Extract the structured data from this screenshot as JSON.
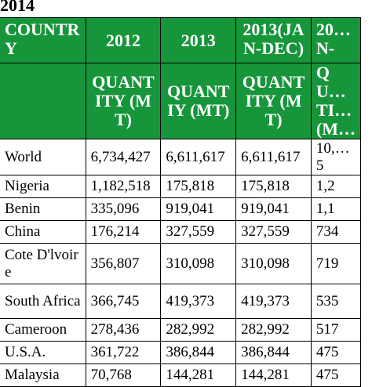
{
  "caption": "2014",
  "header": {
    "row1": [
      "",
      "COUNTRY",
      "2012",
      "2013",
      "2013(JAN-DEC)",
      "20…N-"
    ],
    "row2": [
      "",
      "",
      "QUANTITY (MT)",
      "QUANTIY (MT)",
      "QUANTITY (MT)",
      "QU…TI…(M…"
    ]
  },
  "rows": [
    {
      "country": "World",
      "y2012": "6,734,427",
      "y2013": "6,611,617",
      "y2013jd": "6,611,617",
      "y2014": "10,…5"
    },
    {
      "country": "Nigeria",
      "y2012": "1,182,518",
      "y2013": "175,818",
      "y2013jd": "175,818",
      "y2014": "1,2"
    },
    {
      "country": "Benin",
      "y2012": "335,096",
      "y2013": "919,041",
      "y2013jd": "919,041",
      "y2014": "1,1"
    },
    {
      "country": "China",
      "y2012": "176,214",
      "y2013": "327,559",
      "y2013jd": "327,559",
      "y2014": "734"
    },
    {
      "country": "Cote D'lvoire",
      "y2012": "356,807",
      "y2013": "310,098",
      "y2013jd": "310,098",
      "y2014": "719"
    },
    {
      "country": "South Africa",
      "y2012": "366,745",
      "y2013": "419,373",
      "y2013jd": "419,373",
      "y2014": "535"
    },
    {
      "country": "Cameroon",
      "y2012": "278,436",
      "y2013": "282,992",
      "y2013jd": "282,992",
      "y2014": "517"
    },
    {
      "country": "U.S.A.",
      "y2012": "361,722",
      "y2013": "386,844",
      "y2013jd": "386,844",
      "y2014": "475"
    },
    {
      "country": "Malaysia",
      "y2012": "70,768",
      "y2013": "144,281",
      "y2013jd": "144,281",
      "y2014": "475"
    }
  ],
  "colors": {
    "header_bg": "#17953b",
    "header_text": "#ffffff"
  }
}
